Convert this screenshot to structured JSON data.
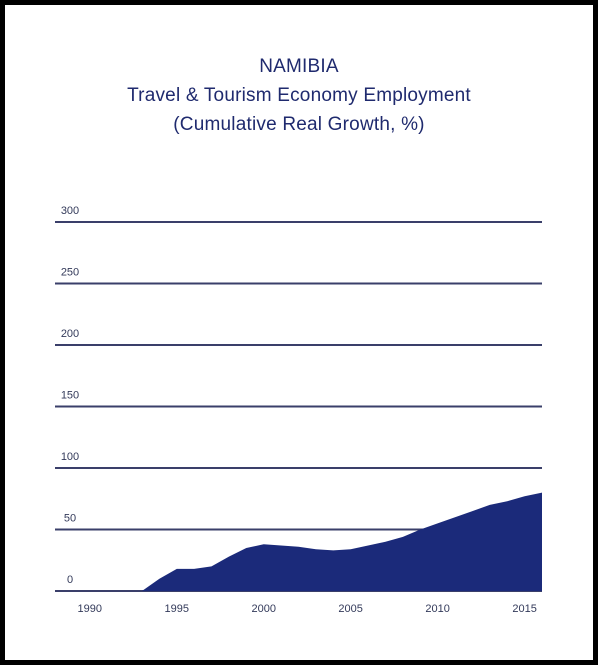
{
  "colors": {
    "area": "#1b2a7a",
    "gridline": "#3a3f6a",
    "title": "#1f2a6e",
    "frame": "#000000"
  },
  "chart_data": {
    "type": "area",
    "title": "NAMIBIA",
    "subtitle": "Travel & Tourism Economy Employment",
    "subtitle2": "(Cumulative Real Growth, %)",
    "xlabel": "",
    "ylabel": "",
    "x_ticks": [
      "1990",
      "1995",
      "2000",
      "2005",
      "2010",
      "2015"
    ],
    "y_ticks": [
      "0",
      "50",
      "100",
      "150",
      "200",
      "250",
      "300"
    ],
    "xlim": [
      1988,
      2016
    ],
    "ylim": [
      0,
      300
    ],
    "grid": true,
    "legend": "none",
    "series": [
      {
        "x": [
          1988,
          1989,
          1990,
          1991,
          1992,
          1993,
          1994,
          1995,
          1996,
          1997,
          1998,
          1999,
          2000,
          2001,
          2002,
          2003,
          2004,
          2005,
          2006,
          2007,
          2008,
          2009,
          2010,
          2011,
          2012,
          2013,
          2014,
          2015,
          2016
        ],
        "values": [
          0,
          0,
          0,
          0,
          0,
          0,
          10,
          18,
          18,
          20,
          28,
          35,
          38,
          37,
          36,
          34,
          33,
          34,
          37,
          40,
          44,
          50,
          55,
          60,
          65,
          70,
          73,
          77,
          80
        ]
      }
    ]
  }
}
